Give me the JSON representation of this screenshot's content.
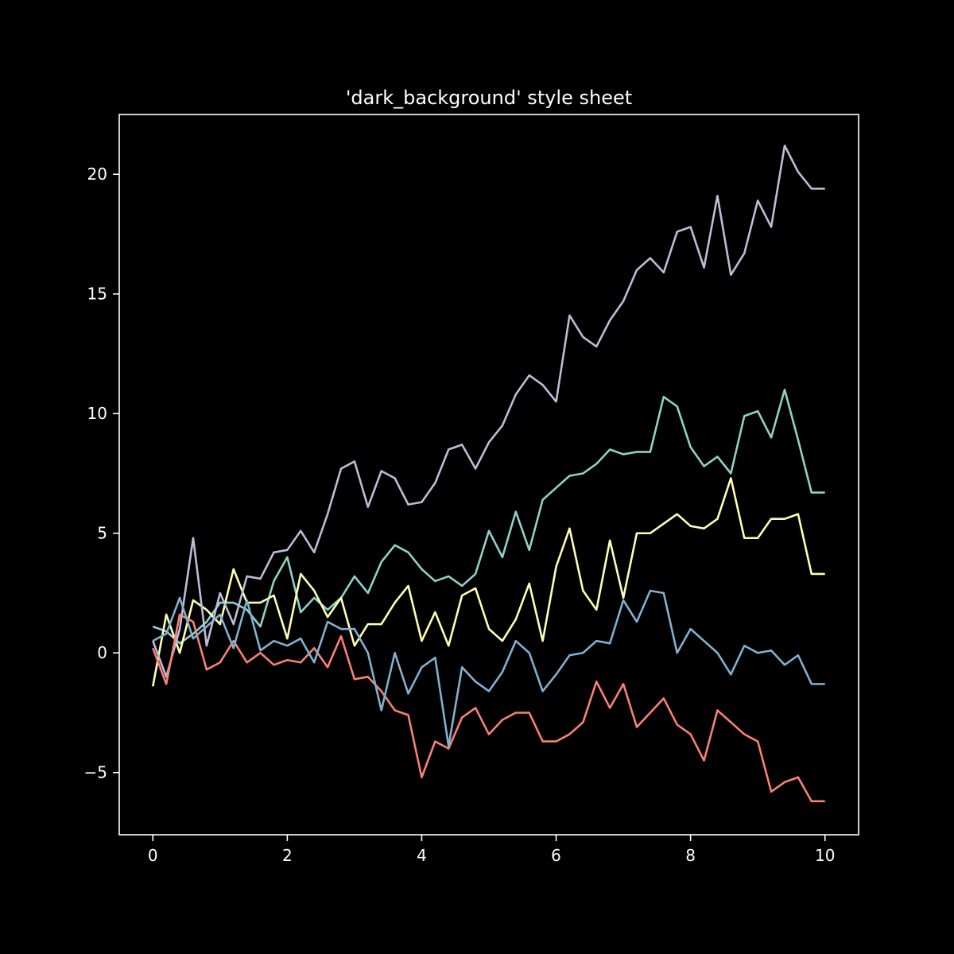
{
  "chart_data": {
    "type": "line",
    "title": "'dark_background' style sheet",
    "xlabel": "",
    "ylabel": "",
    "xlim": [
      -0.5,
      10.5
    ],
    "ylim": [
      -7.6,
      22.5
    ],
    "xticks": [
      0,
      2,
      4,
      6,
      8,
      10
    ],
    "yticks": [
      -5,
      0,
      5,
      10,
      15,
      20
    ],
    "xtick_labels": [
      "0",
      "2",
      "4",
      "6",
      "8",
      "10"
    ],
    "ytick_labels": [
      "−5",
      "0",
      "5",
      "10",
      "15",
      "20"
    ],
    "grid": false,
    "legend": "none",
    "x": [
      0,
      0.2,
      0.4,
      0.6,
      0.8,
      1.0,
      1.2,
      1.4,
      1.6,
      1.8,
      2.0,
      2.2,
      2.4,
      2.6,
      2.8,
      3.0,
      3.2,
      3.4,
      3.6,
      3.8,
      4.0,
      4.2,
      4.4,
      4.6,
      4.8,
      5.0,
      5.2,
      5.4,
      5.6,
      5.8,
      6.0,
      6.2,
      6.4,
      6.6,
      6.8,
      7.0,
      7.2,
      7.4,
      7.6,
      7.8,
      8.0,
      8.2,
      8.4,
      8.6,
      8.8,
      9.0,
      9.2,
      9.4,
      9.6,
      9.8,
      10.0
    ],
    "series": [
      {
        "color": "#8dd3c7",
        "values": [
          1.1,
          0.9,
          0.4,
          0.8,
          1.3,
          2.1,
          2.1,
          1.8,
          1.1,
          3.0,
          4.0,
          1.7,
          2.3,
          1.8,
          2.3,
          3.2,
          2.5,
          3.8,
          4.5,
          4.2,
          3.5,
          3.0,
          3.2,
          2.8,
          3.3,
          5.1,
          4.0,
          5.9,
          4.3,
          6.4,
          6.9,
          7.4,
          7.5,
          7.9,
          8.5,
          8.3,
          8.4,
          8.4,
          10.7,
          10.3,
          8.6,
          7.8,
          8.2,
          7.5,
          9.9,
          10.1,
          9.0,
          11.0,
          8.9,
          6.7,
          6.7
        ]
      },
      {
        "color": "#feffb3",
        "values": [
          -1.4,
          1.6,
          0.0,
          2.2,
          1.8,
          1.2,
          3.5,
          2.1,
          2.1,
          2.4,
          0.6,
          3.3,
          2.6,
          1.5,
          2.3,
          0.3,
          1.2,
          1.2,
          2.1,
          2.8,
          0.5,
          1.7,
          0.3,
          2.4,
          2.7,
          1.0,
          0.5,
          1.4,
          2.9,
          0.5,
          3.6,
          5.2,
          2.6,
          1.8,
          4.7,
          2.3,
          5.0,
          5.0,
          5.4,
          5.8,
          5.3,
          5.2,
          5.6,
          7.3,
          4.8,
          4.8,
          5.6,
          5.6,
          5.8,
          3.3,
          3.3
        ]
      },
      {
        "color": "#bfbbd9",
        "values": [
          0.5,
          -1.0,
          1.0,
          4.8,
          0.3,
          2.5,
          1.2,
          3.2,
          3.1,
          4.2,
          4.3,
          5.1,
          4.2,
          5.8,
          7.7,
          8.0,
          6.1,
          7.6,
          7.3,
          6.2,
          6.3,
          7.1,
          8.5,
          8.7,
          7.7,
          8.8,
          9.5,
          10.8,
          11.6,
          11.2,
          10.5,
          14.1,
          13.2,
          12.8,
          13.9,
          14.7,
          16.0,
          16.5,
          15.9,
          17.6,
          17.8,
          16.1,
          19.1,
          15.8,
          16.7,
          18.9,
          17.8,
          21.2,
          20.1,
          19.4,
          19.4
        ]
      },
      {
        "color": "#fa8174",
        "values": [
          0.2,
          -1.3,
          1.6,
          1.3,
          -0.7,
          -0.4,
          0.5,
          -0.4,
          0.0,
          -0.5,
          -0.3,
          -0.4,
          0.2,
          -0.6,
          0.7,
          -1.1,
          -1.0,
          -1.6,
          -2.4,
          -2.6,
          -5.2,
          -3.7,
          -4.0,
          -2.7,
          -2.3,
          -3.4,
          -2.8,
          -2.5,
          -2.5,
          -3.7,
          -3.7,
          -3.4,
          -2.9,
          -1.2,
          -2.3,
          -1.3,
          -3.1,
          -2.5,
          -1.9,
          -3.0,
          -3.4,
          -4.5,
          -2.4,
          -2.9,
          -3.4,
          -3.7,
          -5.8,
          -5.4,
          -5.2,
          -6.2,
          -6.2
        ]
      },
      {
        "color": "#81b1d2",
        "values": [
          0.5,
          0.8,
          2.3,
          0.6,
          1.1,
          1.6,
          0.2,
          2.2,
          0.1,
          0.5,
          0.3,
          0.6,
          -0.4,
          1.3,
          1.0,
          1.0,
          0.0,
          -2.4,
          0.0,
          -1.7,
          -0.6,
          -0.2,
          -3.9,
          -0.6,
          -1.2,
          -1.6,
          -0.8,
          0.5,
          0.0,
          -1.6,
          -0.9,
          -0.1,
          0.0,
          0.5,
          0.4,
          2.2,
          1.3,
          2.6,
          2.5,
          0.0,
          1.0,
          0.5,
          0.0,
          -0.9,
          0.3,
          0.0,
          0.1,
          -0.5,
          -0.1,
          -1.3,
          -1.3
        ]
      }
    ]
  }
}
